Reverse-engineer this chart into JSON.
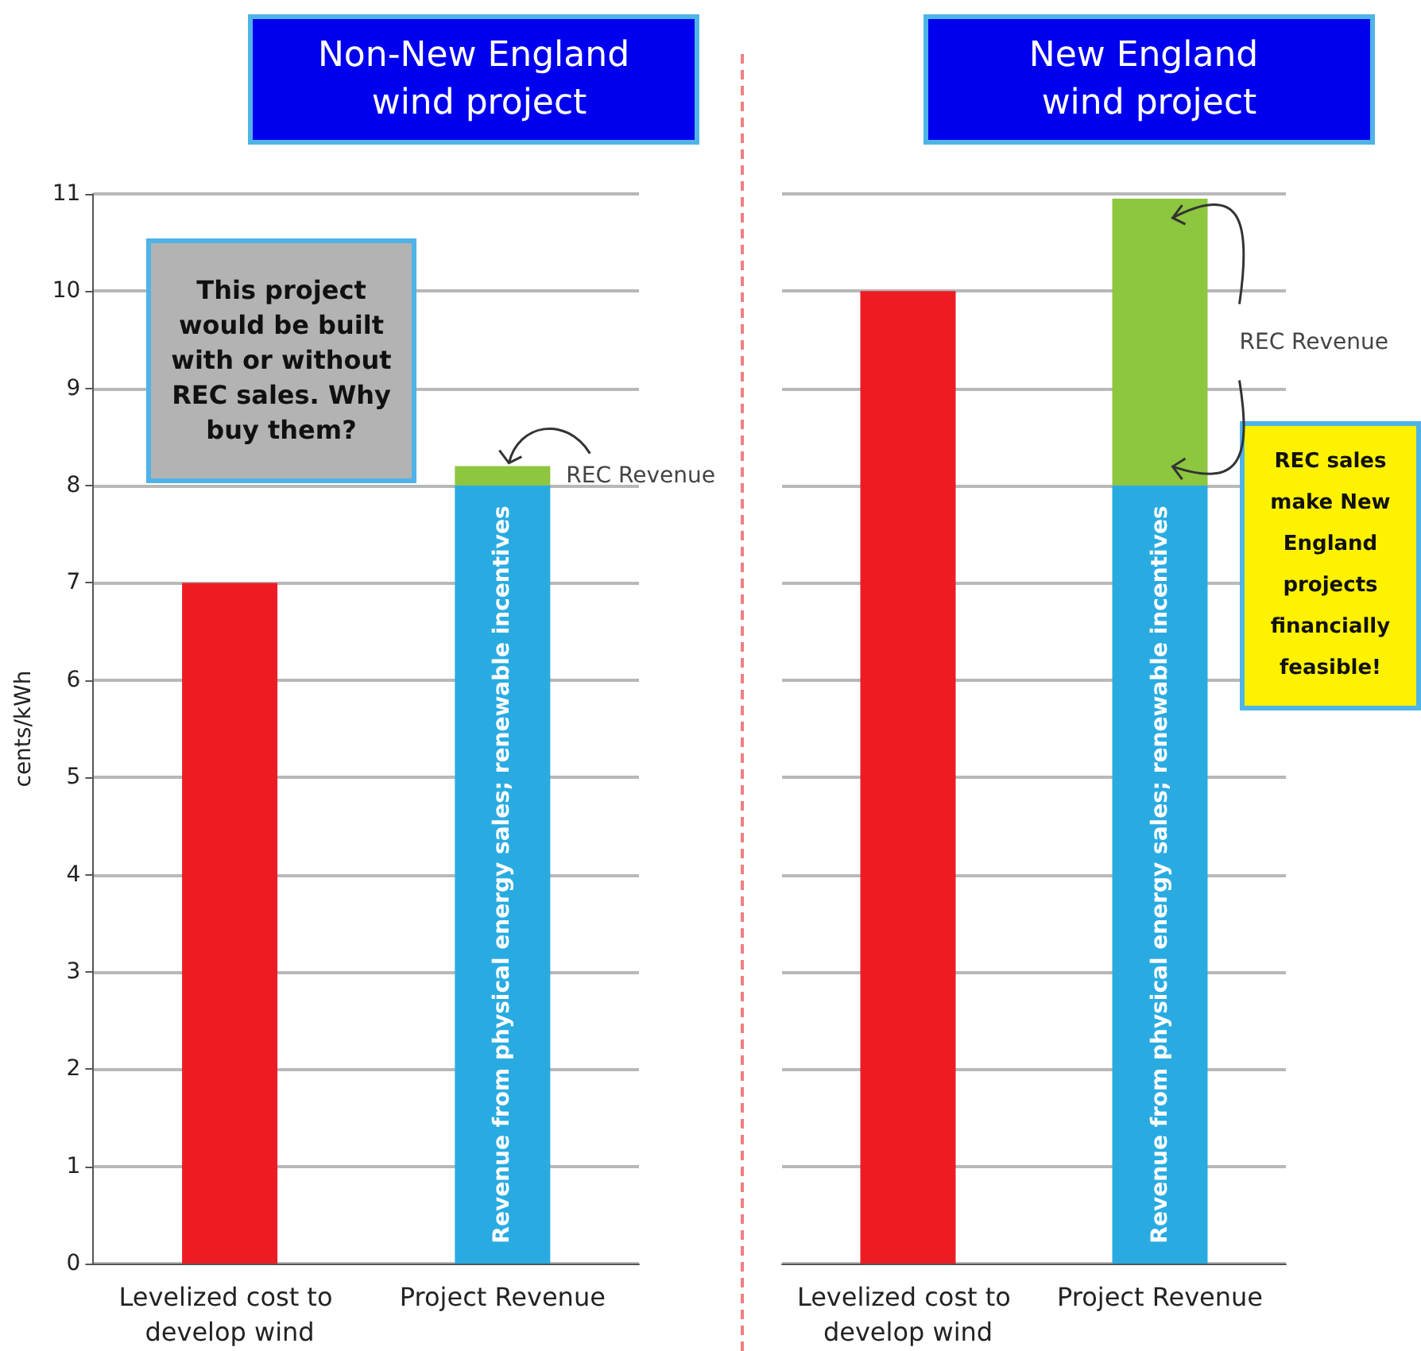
{
  "chart_data": [
    {
      "type": "bar",
      "title": "Non-New England wind project",
      "ylabel": "cents/kWh",
      "categories": [
        "Levelized cost to develop wind",
        "Project Revenue"
      ],
      "stacked": true,
      "ylim": [
        0,
        11
      ],
      "yticks": [
        0,
        1,
        2,
        3,
        4,
        5,
        6,
        7,
        8,
        9,
        10,
        11
      ],
      "grid": "y",
      "legend": false,
      "series": [
        {
          "color": "#ed1c24",
          "values": [
            7,
            null
          ]
        },
        {
          "name": "Revenue from physical energy sales; renewable incentives",
          "color": "#29abe2",
          "values": [
            null,
            8
          ]
        },
        {
          "name": "REC Revenue",
          "color": "#8dc63f",
          "values": [
            null,
            0.2
          ]
        }
      ],
      "annotations": [
        "This project would be built with or without REC sales. Why buy them?"
      ]
    },
    {
      "type": "bar",
      "title": "New England wind project",
      "categories": [
        "Levelized cost to develop wind",
        "Project Revenue"
      ],
      "stacked": true,
      "ylim": [
        0,
        11
      ],
      "yticks": [
        0,
        1,
        2,
        3,
        4,
        5,
        6,
        7,
        8,
        9,
        10,
        11
      ],
      "grid": "y",
      "legend": false,
      "tick_labels": "x",
      "series": [
        {
          "color": "#ed1c24",
          "values": [
            10,
            null
          ]
        },
        {
          "name": "Revenue from physical energy sales; renewable incentives",
          "color": "#29abe2",
          "values": [
            null,
            8
          ]
        },
        {
          "name": "REC Revenue",
          "color": "#8dc63f",
          "values": [
            null,
            2.95
          ]
        }
      ],
      "annotations": [
        "REC sales make New England projects financially feasible!"
      ]
    }
  ]
}
